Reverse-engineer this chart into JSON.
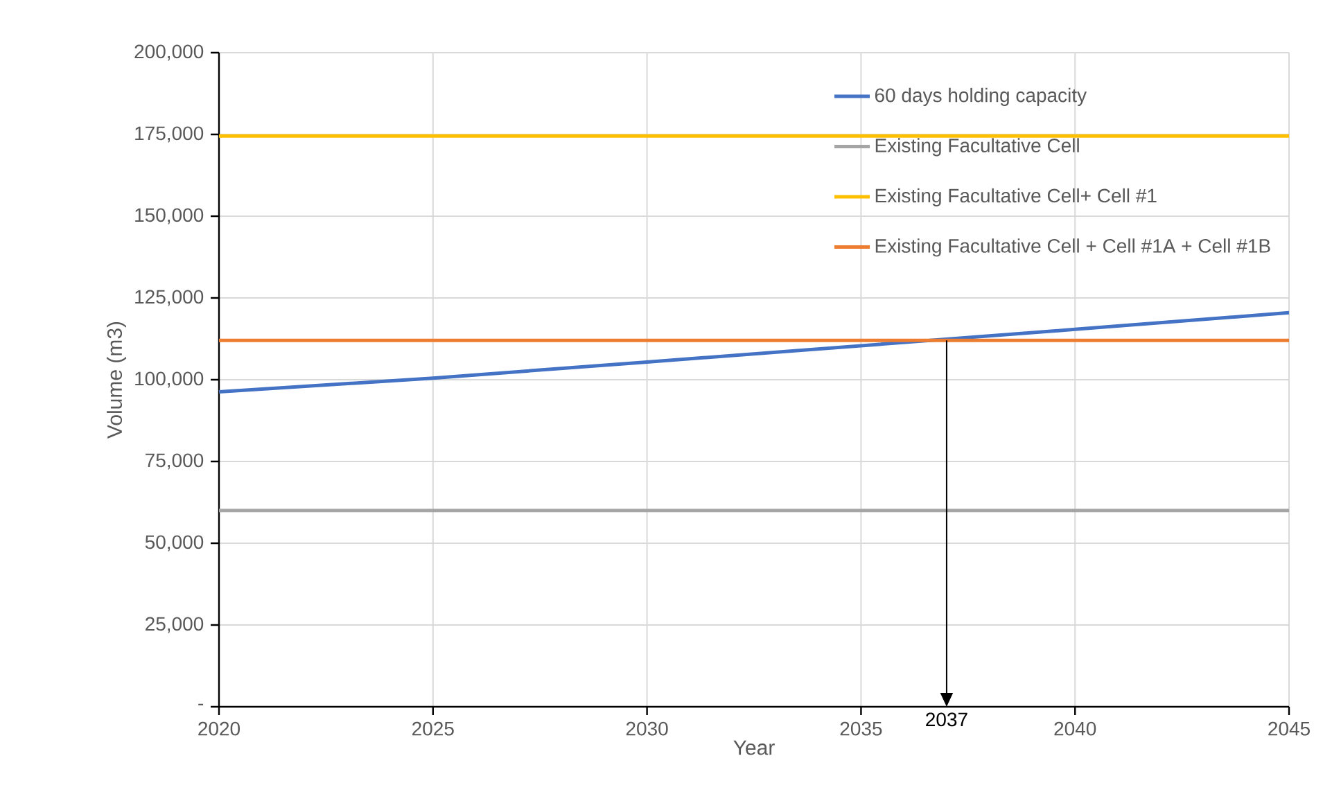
{
  "chart_data": {
    "type": "line",
    "xlabel": "Year",
    "ylabel": "Volume (m3)",
    "x": [
      2020,
      2025,
      2030,
      2035,
      2040,
      2045
    ],
    "series": [
      {
        "name": "60 days holding capacity",
        "color": "#4472c4",
        "values": [
          96300,
          100500,
          105400,
          110400,
          115400,
          120500
        ]
      },
      {
        "name": "Existing Facultative Cell",
        "color": "#a5a5a5",
        "values": [
          60000,
          60000,
          60000,
          60000,
          60000,
          60000
        ]
      },
      {
        "name": "Existing Facultative Cell+ Cell #1",
        "color": "#ffc000",
        "values": [
          174500,
          174500,
          174500,
          174500,
          174500,
          174500
        ]
      },
      {
        "name": "Existing Facultative Cell + Cell #1A + Cell #1B",
        "color": "#ed7d31",
        "values": [
          112000,
          112000,
          112000,
          112000,
          112000,
          112000
        ]
      }
    ],
    "annotations": [
      {
        "text": "2037",
        "x": 2037,
        "y": 112000
      }
    ],
    "xlim": [
      2020,
      2045
    ],
    "xticks": [
      2020,
      2025,
      2030,
      2035,
      2040,
      2045
    ],
    "ylim": [
      0,
      200000
    ],
    "yticks": [
      {
        "value": 0,
        "label": "-"
      },
      {
        "value": 25000,
        "label": "25,000"
      },
      {
        "value": 50000,
        "label": "50,000"
      },
      {
        "value": 75000,
        "label": "75,000"
      },
      {
        "value": 100000,
        "label": "100,000"
      },
      {
        "value": 125000,
        "label": "125,000"
      },
      {
        "value": 150000,
        "label": "150,000"
      },
      {
        "value": 175000,
        "label": "175,000"
      },
      {
        "value": 200000,
        "label": "200,000"
      }
    ],
    "grid": true,
    "legend": "top right",
    "marker": "none",
    "line_style": "solid"
  }
}
